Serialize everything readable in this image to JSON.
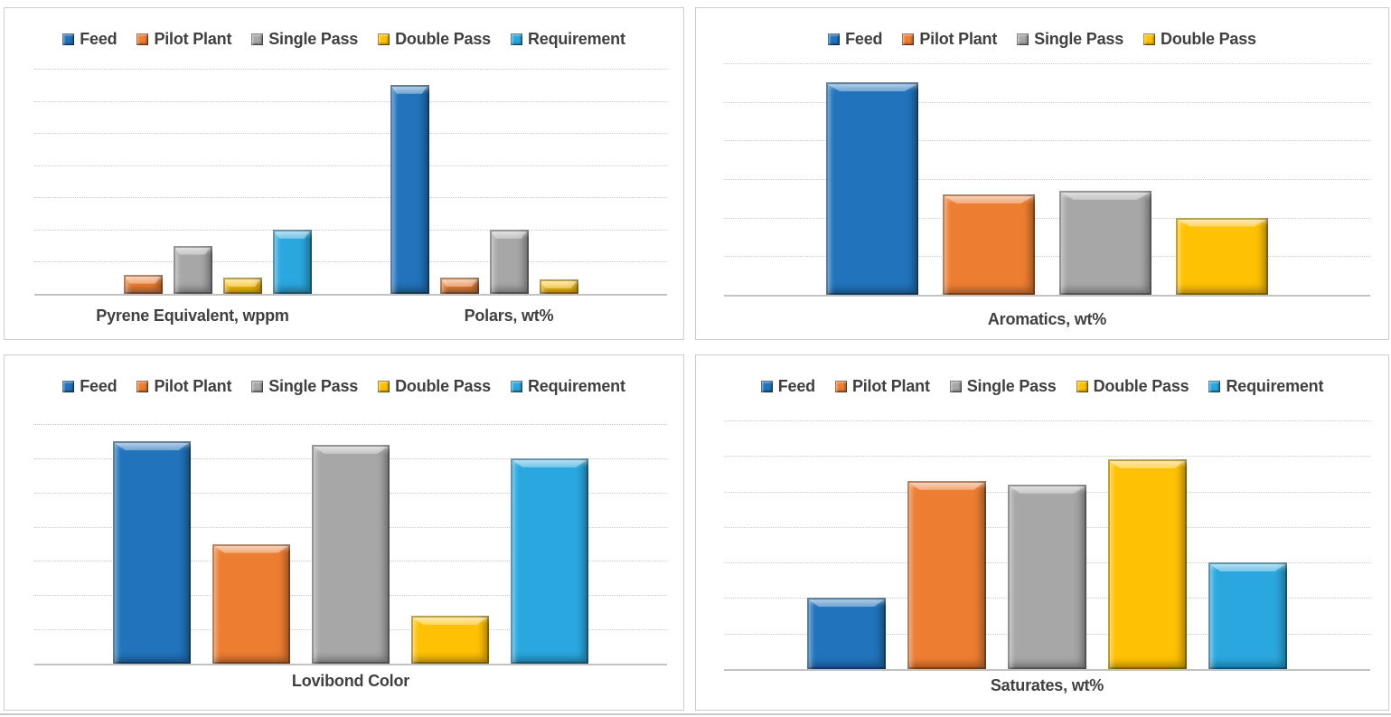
{
  "colors": {
    "feed": "#2173BC",
    "pilot_plant": "#ED7D31",
    "single_pass": "#A7A7A7",
    "double_pass": "#FFC103",
    "requirement": "#2AA7DF",
    "legend_text": "#404040",
    "category_text": "#404040",
    "gridline": "#C9C9C9",
    "axis_line": "#C2C2C2",
    "panel_border": "#CDCDCD",
    "background": "#FFFFFF"
  },
  "series_names": [
    "Feed",
    "Pilot Plant",
    "Single Pass",
    "Double Pass",
    "Requirement"
  ],
  "chart_data": [
    {
      "id": "pyrene-polars",
      "type": "bar",
      "position": "top-left",
      "categories": [
        "Pyrene Equivalent, wppm",
        "Polars, wt%"
      ],
      "legend": [
        "Feed",
        "Pilot Plant",
        "Single Pass",
        "Double Pass",
        "Requirement"
      ],
      "legend_position": "top",
      "grid": "dotted-horizontal",
      "gridlines": 7,
      "ylim": [
        0,
        7
      ],
      "ylabel": "",
      "series": [
        {
          "name": "Feed",
          "color_key": "feed",
          "values": [
            0,
            6.5
          ]
        },
        {
          "name": "Pilot Plant",
          "color_key": "pilot_plant",
          "values": [
            0.6,
            0.5
          ]
        },
        {
          "name": "Single Pass",
          "color_key": "single_pass",
          "values": [
            1.5,
            2.0
          ]
        },
        {
          "name": "Double Pass",
          "color_key": "double_pass",
          "values": [
            0.5,
            0.45
          ]
        },
        {
          "name": "Requirement",
          "color_key": "requirement",
          "values": [
            2.0,
            0
          ]
        }
      ]
    },
    {
      "id": "aromatics",
      "type": "bar",
      "position": "top-right",
      "categories": [
        "Aromatics, wt%"
      ],
      "legend": [
        "Feed",
        "Pilot Plant",
        "Single Pass",
        "Double Pass"
      ],
      "legend_position": "top",
      "grid": "dotted-horizontal",
      "gridlines": 6,
      "ylim": [
        0,
        6
      ],
      "ylabel": "",
      "series": [
        {
          "name": "Feed",
          "color_key": "feed",
          "values": [
            5.5
          ]
        },
        {
          "name": "Pilot Plant",
          "color_key": "pilot_plant",
          "values": [
            2.6
          ]
        },
        {
          "name": "Single Pass",
          "color_key": "single_pass",
          "values": [
            2.7
          ]
        },
        {
          "name": "Double Pass",
          "color_key": "double_pass",
          "values": [
            2.0
          ]
        }
      ]
    },
    {
      "id": "lovibond-color",
      "type": "bar",
      "position": "bottom-left",
      "categories": [
        "Lovibond Color"
      ],
      "legend": [
        "Feed",
        "Pilot Plant",
        "Single Pass",
        "Double Pass",
        "Requirement"
      ],
      "legend_position": "top",
      "grid": "dotted-horizontal",
      "gridlines": 7,
      "ylim": [
        0,
        7
      ],
      "ylabel": "",
      "series": [
        {
          "name": "Feed",
          "color_key": "feed",
          "values": [
            6.5
          ]
        },
        {
          "name": "Pilot Plant",
          "color_key": "pilot_plant",
          "values": [
            3.5
          ]
        },
        {
          "name": "Single Pass",
          "color_key": "single_pass",
          "values": [
            6.4
          ]
        },
        {
          "name": "Double Pass",
          "color_key": "double_pass",
          "values": [
            1.4
          ]
        },
        {
          "name": "Requirement",
          "color_key": "requirement",
          "values": [
            6.0
          ]
        }
      ]
    },
    {
      "id": "saturates",
      "type": "bar",
      "position": "bottom-right",
      "categories": [
        "Saturates, wt%"
      ],
      "legend": [
        "Feed",
        "Pilot Plant",
        "Single Pass",
        "Double Pass",
        "Requirement"
      ],
      "legend_position": "top",
      "grid": "dotted-horizontal",
      "gridlines": 7,
      "ylim": [
        0,
        7
      ],
      "ylabel": "",
      "series": [
        {
          "name": "Feed",
          "color_key": "feed",
          "values": [
            2.0
          ]
        },
        {
          "name": "Pilot Plant",
          "color_key": "pilot_plant",
          "values": [
            5.3
          ]
        },
        {
          "name": "Single Pass",
          "color_key": "single_pass",
          "values": [
            5.2
          ]
        },
        {
          "name": "Double Pass",
          "color_key": "double_pass",
          "values": [
            5.9
          ]
        },
        {
          "name": "Requirement",
          "color_key": "requirement",
          "values": [
            3.0
          ]
        }
      ]
    }
  ]
}
